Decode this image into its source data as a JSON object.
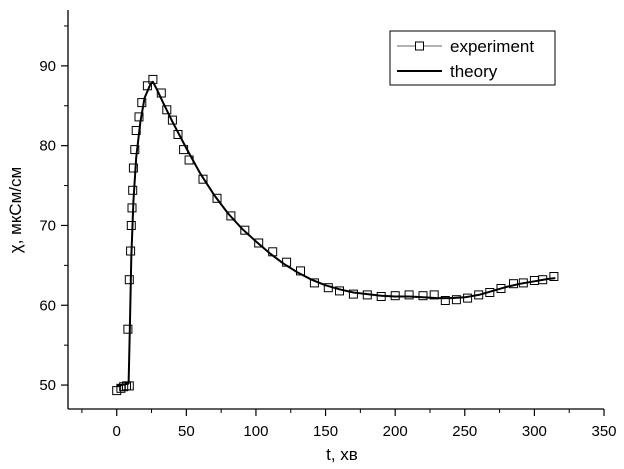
{
  "chart_data": {
    "type": "line",
    "xlabel": "t, хв",
    "ylabel": "χ, мкСм/см",
    "xlim": [
      -35,
      350
    ],
    "ylim": [
      47,
      97
    ],
    "xticks": [
      0,
      50,
      100,
      150,
      200,
      250,
      300,
      350
    ],
    "yticks": [
      50,
      60,
      70,
      80,
      90
    ],
    "x_tick_labels": [
      "0",
      "50",
      "100",
      "150",
      "200",
      "250",
      "300",
      "350"
    ],
    "y_tick_labels": [
      "50",
      "60",
      "70",
      "80",
      "90"
    ],
    "grid": false,
    "legend_position": "top-right",
    "series": [
      {
        "name": "experiment",
        "style": "markers",
        "marker": "open-square",
        "color": "#000000",
        "points": [
          [
            0,
            49.3
          ],
          [
            3,
            49.6
          ],
          [
            5,
            49.8
          ],
          [
            7,
            49.9
          ],
          [
            9,
            49.9
          ],
          [
            8,
            57.0
          ],
          [
            9,
            63.2
          ],
          [
            10,
            66.8
          ],
          [
            10.5,
            70.0
          ],
          [
            11,
            72.2
          ],
          [
            11.5,
            74.4
          ],
          [
            12,
            77.2
          ],
          [
            13,
            79.5
          ],
          [
            14,
            81.9
          ],
          [
            16,
            83.6
          ],
          [
            18,
            85.4
          ],
          [
            22,
            87.5
          ],
          [
            26,
            88.3
          ],
          [
            32,
            86.6
          ],
          [
            36,
            84.5
          ],
          [
            40,
            83.2
          ],
          [
            44,
            81.4
          ],
          [
            48,
            79.5
          ],
          [
            52,
            78.2
          ],
          [
            62,
            75.8
          ],
          [
            72,
            73.4
          ],
          [
            82,
            71.2
          ],
          [
            92,
            69.4
          ],
          [
            102,
            67.8
          ],
          [
            112,
            66.7
          ],
          [
            122,
            65.4
          ],
          [
            132,
            64.3
          ],
          [
            142,
            62.8
          ],
          [
            152,
            62.2
          ],
          [
            160,
            61.8
          ],
          [
            170,
            61.4
          ],
          [
            180,
            61.3
          ],
          [
            190,
            61.1
          ],
          [
            200,
            61.2
          ],
          [
            210,
            61.3
          ],
          [
            220,
            61.2
          ],
          [
            228,
            61.3
          ],
          [
            236,
            60.6
          ],
          [
            244,
            60.7
          ],
          [
            252,
            60.9
          ],
          [
            260,
            61.3
          ],
          [
            268,
            61.6
          ],
          [
            276,
            62.1
          ],
          [
            285,
            62.7
          ],
          [
            292,
            62.8
          ],
          [
            300,
            63.1
          ],
          [
            306,
            63.2
          ],
          [
            314,
            63.6
          ]
        ]
      },
      {
        "name": "theory",
        "style": "line",
        "color": "#000000",
        "points": [
          [
            0,
            49.9
          ],
          [
            3,
            50.0
          ],
          [
            6,
            50.1
          ],
          [
            8.5,
            50.2
          ],
          [
            9.5,
            58.0
          ],
          [
            10.5,
            66.0
          ],
          [
            12,
            73.0
          ],
          [
            14,
            78.5
          ],
          [
            17,
            83.0
          ],
          [
            20,
            86.0
          ],
          [
            24,
            87.6
          ],
          [
            26,
            88.0
          ],
          [
            29,
            87.0
          ],
          [
            33,
            85.5
          ],
          [
            40,
            83.0
          ],
          [
            50,
            79.7
          ],
          [
            60,
            76.5
          ],
          [
            70,
            73.8
          ],
          [
            80,
            71.5
          ],
          [
            90,
            69.6
          ],
          [
            100,
            68.0
          ],
          [
            110,
            66.5
          ],
          [
            120,
            65.2
          ],
          [
            130,
            64.1
          ],
          [
            140,
            63.2
          ],
          [
            150,
            62.5
          ],
          [
            160,
            62.0
          ],
          [
            170,
            61.6
          ],
          [
            180,
            61.4
          ],
          [
            190,
            61.2
          ],
          [
            200,
            61.1
          ],
          [
            210,
            61.1
          ],
          [
            220,
            61.0
          ],
          [
            230,
            60.9
          ],
          [
            240,
            60.9
          ],
          [
            250,
            61.0
          ],
          [
            260,
            61.3
          ],
          [
            270,
            61.8
          ],
          [
            280,
            62.3
          ],
          [
            290,
            62.7
          ],
          [
            300,
            63.0
          ],
          [
            310,
            63.3
          ],
          [
            315,
            63.4
          ]
        ]
      }
    ]
  }
}
